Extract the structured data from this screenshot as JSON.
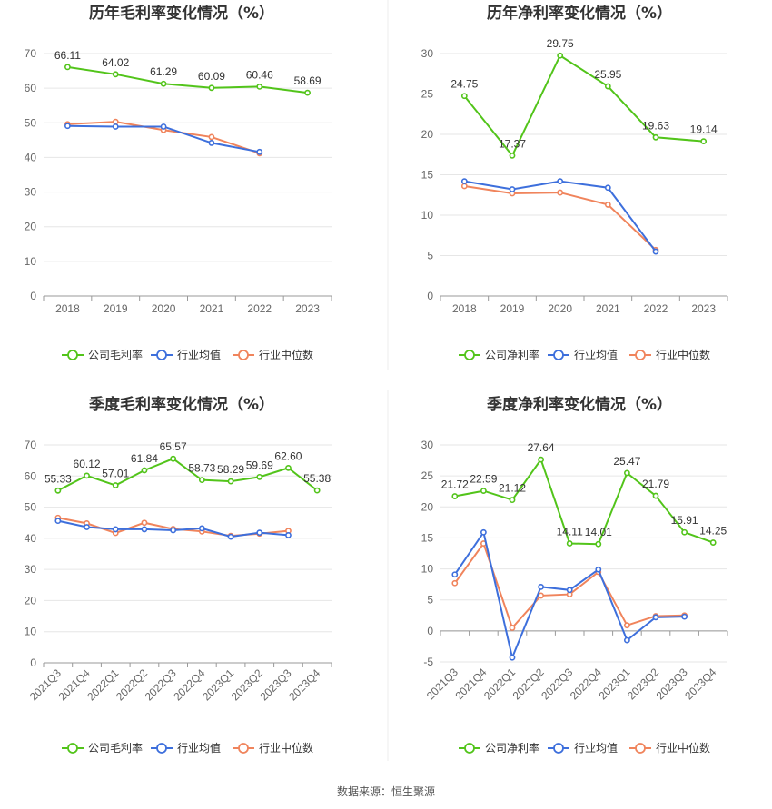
{
  "source": "数据来源：恒生聚源",
  "colors": {
    "company": "#52c41a",
    "avg": "#3d6fdc",
    "median": "#f0845c",
    "grid": "#e6e6e6",
    "axis": "#999999"
  },
  "chart_data": [
    {
      "type": "line",
      "title": "历年毛利率变化情况（%）",
      "categories": [
        "2018",
        "2019",
        "2020",
        "2021",
        "2022",
        "2023"
      ],
      "ylim": [
        0,
        70
      ],
      "yticks": [
        0,
        10,
        20,
        30,
        40,
        50,
        60,
        70
      ],
      "series": [
        {
          "name": "公司毛利率",
          "key": "company",
          "labels": true,
          "values": [
            66.11,
            64.02,
            61.29,
            60.09,
            60.46,
            58.69
          ]
        },
        {
          "name": "行业均值",
          "key": "avg",
          "labels": false,
          "values": [
            49.1,
            48.9,
            48.9,
            44.2,
            41.6,
            null
          ]
        },
        {
          "name": "行业中位数",
          "key": "median",
          "labels": false,
          "values": [
            49.6,
            50.3,
            47.9,
            45.9,
            41.2,
            null
          ]
        }
      ]
    },
    {
      "type": "line",
      "title": "历年净利率变化情况（%）",
      "categories": [
        "2018",
        "2019",
        "2020",
        "2021",
        "2022",
        "2023"
      ],
      "ylim": [
        0,
        30
      ],
      "yticks": [
        0,
        5,
        10,
        15,
        20,
        25,
        30
      ],
      "series": [
        {
          "name": "公司净利率",
          "key": "company",
          "labels": true,
          "values": [
            24.75,
            17.37,
            29.75,
            25.95,
            19.63,
            19.14
          ]
        },
        {
          "name": "行业均值",
          "key": "avg",
          "labels": false,
          "values": [
            14.2,
            13.2,
            14.2,
            13.4,
            5.5,
            null
          ]
        },
        {
          "name": "行业中位数",
          "key": "median",
          "labels": false,
          "values": [
            13.6,
            12.7,
            12.8,
            11.3,
            5.7,
            null
          ]
        }
      ]
    },
    {
      "type": "line",
      "title": "季度毛利率变化情况（%）",
      "categories": [
        "2021Q3",
        "2021Q4",
        "2022Q1",
        "2022Q2",
        "2022Q3",
        "2022Q4",
        "2023Q1",
        "2023Q2",
        "2023Q3",
        "2023Q4"
      ],
      "ylim": [
        0,
        70
      ],
      "yticks": [
        0,
        10,
        20,
        30,
        40,
        50,
        60,
        70
      ],
      "series": [
        {
          "name": "公司毛利率",
          "key": "company",
          "labels": true,
          "values": [
            55.33,
            60.12,
            57.01,
            61.84,
            65.57,
            58.73,
            58.29,
            59.69,
            62.6,
            55.38
          ]
        },
        {
          "name": "行业均值",
          "key": "avg",
          "labels": false,
          "values": [
            45.6,
            43.6,
            42.9,
            42.9,
            42.6,
            43.2,
            40.5,
            41.8,
            41.0,
            null
          ]
        },
        {
          "name": "行业中位数",
          "key": "median",
          "labels": false,
          "values": [
            46.6,
            44.8,
            41.7,
            45.0,
            43.0,
            42.2,
            40.8,
            41.5,
            42.4,
            null
          ]
        }
      ]
    },
    {
      "type": "line",
      "title": "季度净利率变化情况（%）",
      "categories": [
        "2021Q3",
        "2021Q4",
        "2022Q1",
        "2022Q2",
        "2022Q3",
        "2022Q4",
        "2023Q1",
        "2023Q2",
        "2023Q3",
        "2023Q4"
      ],
      "ylim": [
        -5,
        30
      ],
      "yticks": [
        -5,
        0,
        5,
        10,
        15,
        20,
        25,
        30
      ],
      "series": [
        {
          "name": "公司净利率",
          "key": "company",
          "labels": true,
          "values": [
            21.72,
            22.59,
            21.12,
            27.64,
            14.11,
            14.01,
            25.47,
            21.79,
            15.91,
            14.25
          ]
        },
        {
          "name": "行业均值",
          "key": "avg",
          "labels": false,
          "values": [
            9.1,
            15.9,
            -4.3,
            7.1,
            6.6,
            9.9,
            -1.5,
            2.2,
            2.3,
            null
          ]
        },
        {
          "name": "行业中位数",
          "key": "median",
          "labels": false,
          "values": [
            7.7,
            14.1,
            0.5,
            5.7,
            5.9,
            9.5,
            0.9,
            2.4,
            2.5,
            null
          ]
        }
      ]
    }
  ]
}
